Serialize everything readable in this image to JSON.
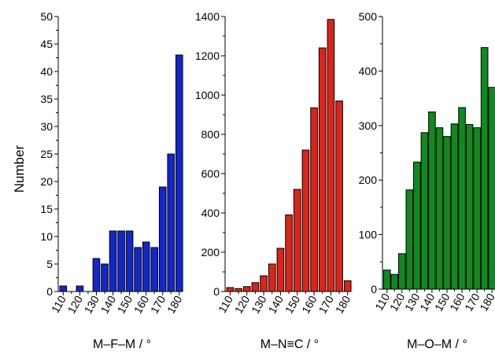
{
  "figure": {
    "shared_ylabel": "Number"
  },
  "chart_data": [
    {
      "type": "bar",
      "xlabel": "M–F–M / °",
      "ylabel": "Number",
      "ylim": [
        0,
        50
      ],
      "yticks": [
        0,
        5,
        10,
        15,
        20,
        25,
        30,
        35,
        40,
        45,
        50
      ],
      "xlim": [
        107,
        182
      ],
      "xticks": [
        110,
        120,
        130,
        140,
        150,
        160,
        170,
        180
      ],
      "bar_color": "#1427c8",
      "x": [
        110,
        115,
        120,
        125,
        130,
        135,
        140,
        145,
        150,
        155,
        160,
        165,
        170,
        175,
        180
      ],
      "values": [
        1,
        0,
        1,
        0,
        6,
        5,
        11,
        11,
        11,
        8,
        9,
        8,
        19,
        25,
        43
      ]
    },
    {
      "type": "bar",
      "xlabel": "M–N≡C / °",
      "ylabel": "",
      "ylim": [
        0,
        1400
      ],
      "yticks": [
        0,
        200,
        400,
        600,
        800,
        1000,
        1200,
        1400
      ],
      "xlim": [
        107,
        182
      ],
      "xticks": [
        110,
        120,
        130,
        140,
        150,
        160,
        170,
        180
      ],
      "bar_color": "#dc2418",
      "x": [
        110,
        115,
        120,
        125,
        130,
        135,
        140,
        145,
        150,
        155,
        160,
        165,
        170,
        175,
        180
      ],
      "values": [
        20,
        15,
        25,
        45,
        80,
        140,
        220,
        390,
        520,
        720,
        935,
        1240,
        1385,
        970,
        55
      ]
    },
    {
      "type": "bar",
      "xlabel": "M–O–M / °",
      "ylabel": "",
      "ylim": [
        0,
        500
      ],
      "yticks": [
        0,
        100,
        200,
        300,
        400,
        500
      ],
      "xlim": [
        107,
        182
      ],
      "xticks": [
        110,
        120,
        130,
        140,
        150,
        160,
        170,
        180
      ],
      "bar_color": "#108a1e",
      "x": [
        110,
        115,
        120,
        125,
        130,
        135,
        140,
        145,
        150,
        155,
        160,
        165,
        170,
        175,
        180
      ],
      "values": [
        35,
        27,
        65,
        182,
        233,
        287,
        325,
        296,
        280,
        303,
        333,
        302,
        296,
        443,
        370
      ]
    }
  ]
}
